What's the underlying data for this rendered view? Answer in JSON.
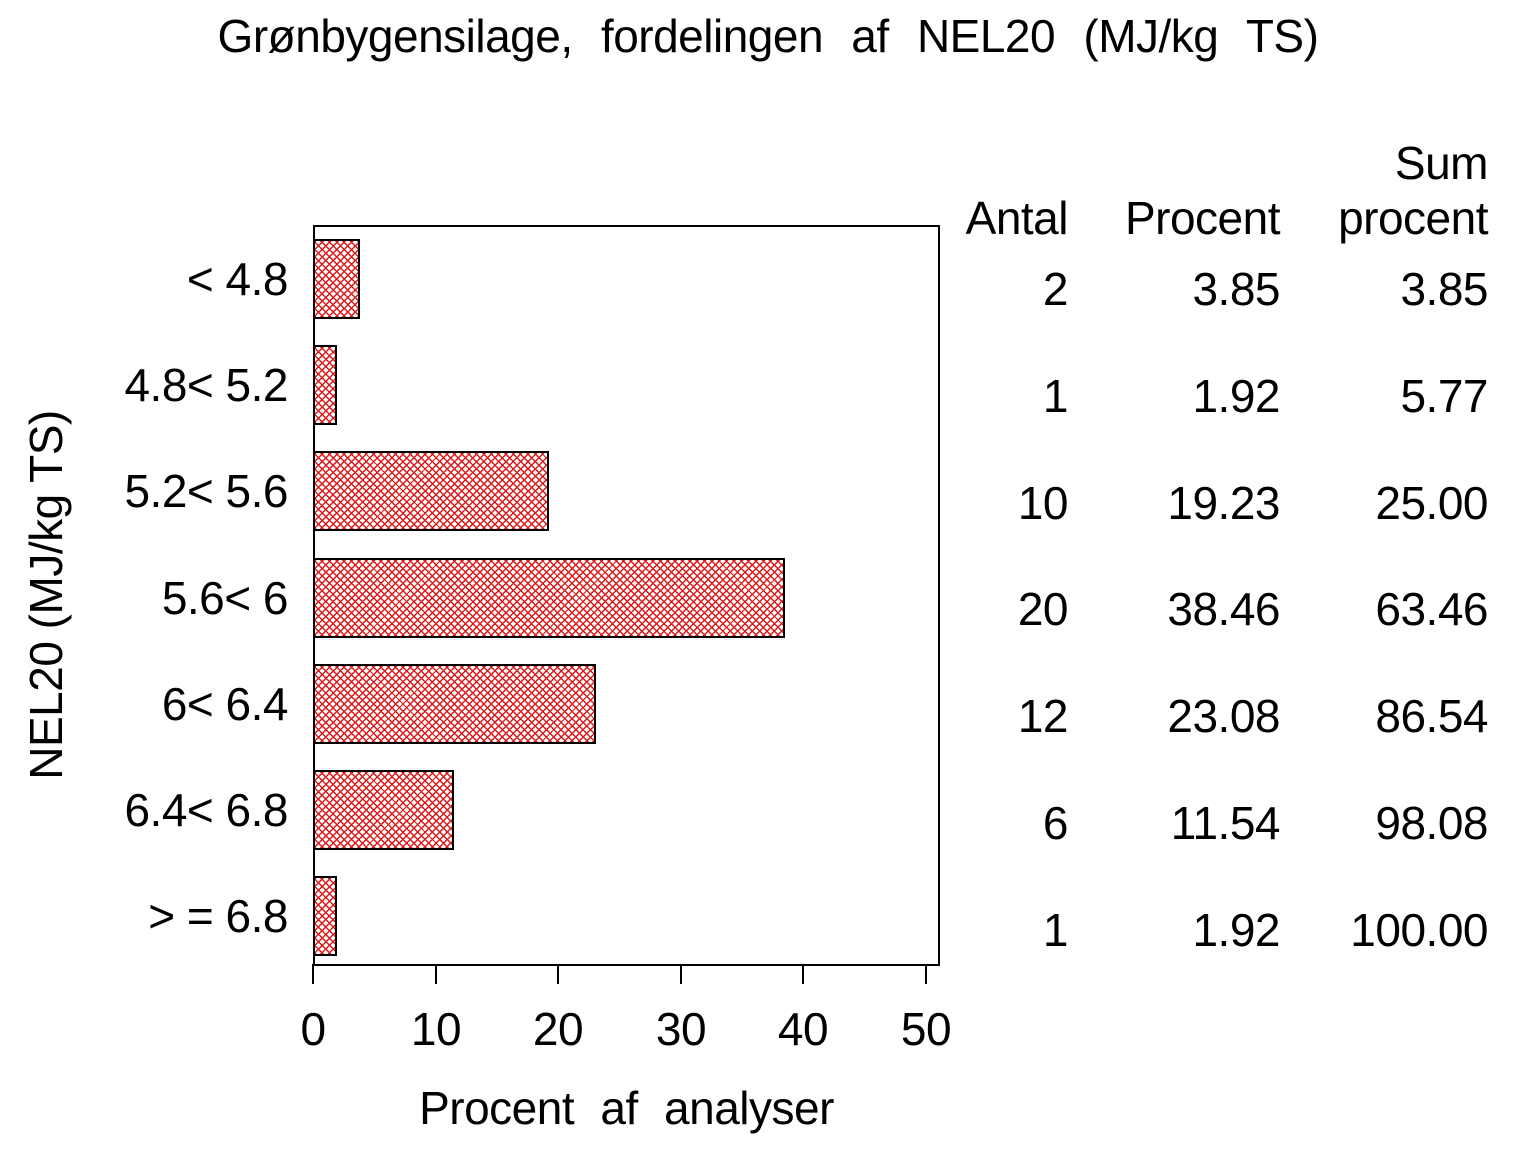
{
  "title": "Grønbygensilage, fordelingen af NEL20 (MJ/kg TS)",
  "x_axis": {
    "label": "Procent af analyser",
    "ticks": [
      0,
      10,
      20,
      30,
      40,
      50
    ],
    "max": 50
  },
  "y_axis": {
    "label": "NEL20 (MJ/kg TS)"
  },
  "table_header": {
    "antal": "Antal",
    "procent": "Procent",
    "sum_line1": "Sum",
    "sum_line2": "procent"
  },
  "chart_data": {
    "type": "bar",
    "orientation": "horizontal",
    "title": "Grønbygensilage, fordelingen af NEL20 (MJ/kg TS)",
    "xlabel": "Procent af analyser",
    "ylabel": "NEL20 (MJ/kg TS)",
    "xlim": [
      0,
      50
    ],
    "grid": false,
    "legend": "none",
    "bar_fill": "#ffffff",
    "bar_hatch": "diagonal-crosshatch",
    "bar_hatch_color": "#e01818",
    "bar_border_color": "#000000",
    "categories": [
      "< 4.8",
      "4.8< 5.2",
      "5.2< 5.6",
      "5.6< 6",
      "6< 6.4",
      "6.4< 6.8",
      "> = 6.8"
    ],
    "series": [
      {
        "name": "Antal",
        "values": [
          2,
          1,
          10,
          20,
          12,
          6,
          1
        ]
      },
      {
        "name": "Procent",
        "values": [
          3.85,
          1.92,
          19.23,
          38.46,
          23.08,
          11.54,
          1.92
        ]
      },
      {
        "name": "Sum procent",
        "values": [
          3.85,
          5.77,
          25.0,
          63.46,
          86.54,
          98.08,
          100.0
        ]
      }
    ],
    "rows": [
      {
        "category": "< 4.8",
        "antal": "2",
        "procent": "3.85",
        "sum_procent": "3.85",
        "procent_value": 3.85
      },
      {
        "category": "4.8< 5.2",
        "antal": "1",
        "procent": "1.92",
        "sum_procent": "5.77",
        "procent_value": 1.92
      },
      {
        "category": "5.2< 5.6",
        "antal": "10",
        "procent": "19.23",
        "sum_procent": "25.00",
        "procent_value": 19.23
      },
      {
        "category": "5.6< 6",
        "antal": "20",
        "procent": "38.46",
        "sum_procent": "63.46",
        "procent_value": 38.46
      },
      {
        "category": "6< 6.4",
        "antal": "12",
        "procent": "23.08",
        "sum_procent": "86.54",
        "procent_value": 23.08
      },
      {
        "category": "6.4< 6.8",
        "antal": "6",
        "procent": "11.54",
        "sum_procent": "98.08",
        "procent_value": 11.54
      },
      {
        "category": "> = 6.8",
        "antal": "1",
        "procent": "1.92",
        "sum_procent": "100.00",
        "procent_value": 1.92
      }
    ]
  }
}
